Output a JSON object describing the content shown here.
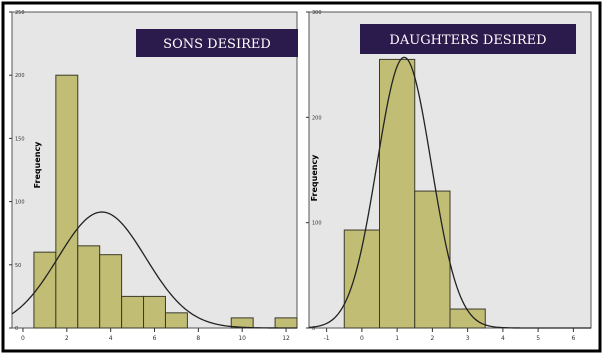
{
  "colors": {
    "frame": "#000000",
    "plot_background": "#e6e6e6",
    "bar_fill": "#c2bd75",
    "bar_stroke": "#3a3a2a",
    "curve": "#222222",
    "title_box": "#2b1a4c",
    "title_text": "#ffffff"
  },
  "chart_data": [
    {
      "type": "bar",
      "title": "SONS DESIRED",
      "ylabel": "Frequency",
      "xlabel": "",
      "bin_width": 1,
      "xlim": [
        -0.5,
        12.5
      ],
      "ylim": [
        0,
        250
      ],
      "x_ticks": [
        0,
        2,
        4,
        6,
        8,
        10,
        12
      ],
      "y_ticks": [
        0,
        50,
        100,
        150,
        200,
        250
      ],
      "bins": [
        {
          "x": 1,
          "value": 60
        },
        {
          "x": 2,
          "value": 200
        },
        {
          "x": 3,
          "value": 65
        },
        {
          "x": 4,
          "value": 58
        },
        {
          "x": 5,
          "value": 25
        },
        {
          "x": 6,
          "value": 25
        },
        {
          "x": 7,
          "value": 12
        },
        {
          "x": 10,
          "value": 8
        },
        {
          "x": 12,
          "value": 8
        }
      ],
      "normal_curve": {
        "mean": 3.6,
        "sd": 2.0,
        "n": 460
      },
      "grid": false
    },
    {
      "type": "bar",
      "title": "DAUGHTERS DESIRED",
      "ylabel": "Frequency",
      "xlabel": "",
      "bin_width": 1,
      "xlim": [
        -1.5,
        6.5
      ],
      "ylim": [
        0,
        300
      ],
      "x_ticks": [
        -1,
        0,
        1,
        2,
        3,
        4,
        5,
        6
      ],
      "y_ticks": [
        0,
        100,
        200,
        300
      ],
      "bins": [
        {
          "x": 0,
          "value": 93
        },
        {
          "x": 1,
          "value": 255
        },
        {
          "x": 2,
          "value": 130
        },
        {
          "x": 3,
          "value": 18
        }
      ],
      "normal_curve": {
        "mean": 1.2,
        "sd": 0.77,
        "n": 496
      },
      "grid": false
    }
  ]
}
